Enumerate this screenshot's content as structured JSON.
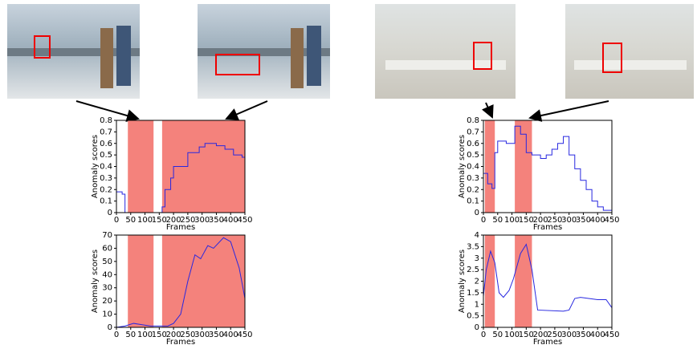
{
  "chart_data": [
    {
      "type": "line",
      "xlabel": "Frames",
      "ylabel": "Anomaly scores",
      "xlim": [
        0,
        450
      ],
      "ylim": [
        0,
        0.8
      ],
      "xticks": [
        0,
        50,
        100,
        150,
        200,
        250,
        300,
        350,
        400,
        450
      ],
      "yticks": [
        0,
        0.1,
        0.2,
        0.3,
        0.4,
        0.5,
        0.6,
        0.7,
        0.8
      ],
      "shaded_regions": [
        [
          40,
          130
        ],
        [
          160,
          450
        ]
      ],
      "shade_color": "#f4827c",
      "x": [
        0,
        20,
        20,
        30,
        30,
        160,
        160,
        170,
        170,
        190,
        190,
        200,
        200,
        250,
        250,
        290,
        290,
        310,
        310,
        350,
        350,
        380,
        380,
        410,
        410,
        440,
        440,
        450
      ],
      "series": [
        {
          "color": "#2828e0",
          "values": [
            0.18,
            0.18,
            0.16,
            0.16,
            0,
            0,
            0.05,
            0.05,
            0.2,
            0.2,
            0.3,
            0.3,
            0.4,
            0.4,
            0.52,
            0.52,
            0.57,
            0.57,
            0.6,
            0.6,
            0.58,
            0.58,
            0.55,
            0.55,
            0.5,
            0.5,
            0.48,
            0.48
          ]
        }
      ]
    },
    {
      "type": "line",
      "xlabel": "Frames",
      "ylabel": "Anomaly scores",
      "xlim": [
        0,
        450
      ],
      "ylim": [
        0,
        70
      ],
      "xticks": [
        0,
        50,
        100,
        150,
        200,
        250,
        300,
        350,
        400,
        450
      ],
      "yticks": [
        0,
        10,
        20,
        30,
        40,
        50,
        60,
        70
      ],
      "shaded_regions": [
        [
          40,
          130
        ],
        [
          160,
          450
        ]
      ],
      "shade_color": "#f4827c",
      "x": [
        0,
        30,
        60,
        90,
        120,
        150,
        180,
        200,
        225,
        250,
        275,
        295,
        320,
        340,
        375,
        400,
        430,
        450
      ],
      "series": [
        {
          "color": "#2828e0",
          "values": [
            0,
            1,
            3,
            2,
            1,
            1,
            1,
            3,
            10,
            35,
            55,
            52,
            62,
            60,
            68,
            65,
            45,
            22
          ]
        }
      ]
    },
    {
      "type": "line",
      "xlabel": "Frames",
      "ylabel": "Anomaly scores",
      "xlim": [
        0,
        450
      ],
      "ylim": [
        0,
        0.8
      ],
      "xticks": [
        0,
        50,
        100,
        150,
        200,
        250,
        300,
        350,
        400,
        450
      ],
      "yticks": [
        0,
        0.1,
        0.2,
        0.3,
        0.4,
        0.5,
        0.6,
        0.7,
        0.8
      ],
      "shaded_regions": [
        [
          5,
          40
        ],
        [
          110,
          170
        ]
      ],
      "shade_color": "#f4827c",
      "x": [
        0,
        15,
        15,
        30,
        30,
        40,
        40,
        50,
        50,
        80,
        80,
        110,
        110,
        130,
        130,
        150,
        150,
        170,
        170,
        200,
        200,
        220,
        220,
        240,
        240,
        260,
        260,
        280,
        280,
        300,
        300,
        320,
        320,
        340,
        340,
        360,
        360,
        380,
        380,
        400,
        400,
        420,
        420,
        450
      ],
      "series": [
        {
          "color": "#2828e0",
          "values": [
            0.34,
            0.34,
            0.25,
            0.25,
            0.21,
            0.21,
            0.52,
            0.52,
            0.62,
            0.62,
            0.6,
            0.6,
            0.75,
            0.75,
            0.68,
            0.68,
            0.52,
            0.52,
            0.5,
            0.5,
            0.47,
            0.47,
            0.5,
            0.5,
            0.55,
            0.55,
            0.6,
            0.6,
            0.66,
            0.66,
            0.5,
            0.5,
            0.38,
            0.38,
            0.28,
            0.28,
            0.2,
            0.2,
            0.1,
            0.1,
            0.05,
            0.05,
            0.02,
            0.02
          ]
        }
      ]
    },
    {
      "type": "line",
      "xlabel": "Frames",
      "ylabel": "Anomaly scores",
      "xlim": [
        0,
        450
      ],
      "ylim": [
        0,
        4
      ],
      "xticks": [
        0,
        50,
        100,
        150,
        200,
        250,
        300,
        350,
        400,
        450
      ],
      "yticks": [
        0,
        0.5,
        1,
        1.5,
        2,
        2.5,
        3,
        3.5,
        4
      ],
      "shaded_regions": [
        [
          5,
          40
        ],
        [
          110,
          170
        ]
      ],
      "shade_color": "#f4827c",
      "x": [
        0,
        10,
        25,
        40,
        55,
        70,
        90,
        105,
        130,
        150,
        170,
        190,
        280,
        300,
        320,
        340,
        400,
        430,
        450
      ],
      "series": [
        {
          "color": "#2828e0",
          "values": [
            1.35,
            2.5,
            3.3,
            2.8,
            1.5,
            1.3,
            1.6,
            2.1,
            3.2,
            3.6,
            2.5,
            0.75,
            0.7,
            0.75,
            1.25,
            1.3,
            1.2,
            1.2,
            0.85
          ]
        }
      ]
    }
  ]
}
